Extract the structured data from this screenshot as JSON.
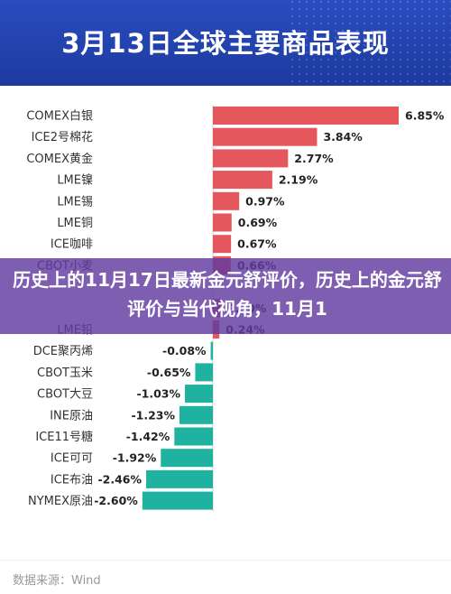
{
  "header": {
    "title": "3月13日全球主要商品表现"
  },
  "overlay": {
    "text": "历史上的11月17日最新金元舒评价，历史上的金元舒评价与当代视角，11月1"
  },
  "footer": {
    "source": "数据来源：Wind"
  },
  "colors": {
    "positive": "#e4575c",
    "negative": "#1fb2a0",
    "header": "#1f3fa8",
    "overlay": "#623aa0"
  },
  "chart_data": {
    "type": "bar",
    "orientation": "horizontal",
    "categories": [
      "COMEX白银",
      "ICE2号棉花",
      "COMEX黄金",
      "LME镍",
      "LME锡",
      "LME铜",
      "ICE咖啡",
      "CBOT小麦",
      "",
      "",
      "LME铅",
      "DCE聚丙烯",
      "CBOT玉米",
      "CBOT大豆",
      "INE原油",
      "ICE11号糖",
      "ICE可可",
      "ICE布油",
      "NYMEX原油"
    ],
    "values": [
      6.85,
      3.84,
      2.77,
      2.19,
      0.97,
      0.69,
      0.67,
      0.66,
      null,
      0.3,
      0.24,
      -0.08,
      -0.65,
      -1.03,
      -1.23,
      -1.42,
      -1.92,
      -2.46,
      -2.6
    ],
    "labels": [
      "6.85%",
      "3.84%",
      "2.77%",
      "2.19%",
      "0.97%",
      "0.69%",
      "0.67%",
      "0.66%",
      "",
      "0.30%",
      "0.24%",
      "-0.08%",
      "-0.65%",
      "-1.03%",
      "-1.23%",
      "-1.42%",
      "-1.92%",
      "-2.46%",
      "-2.60%"
    ],
    "unit": "%",
    "grid": false
  }
}
